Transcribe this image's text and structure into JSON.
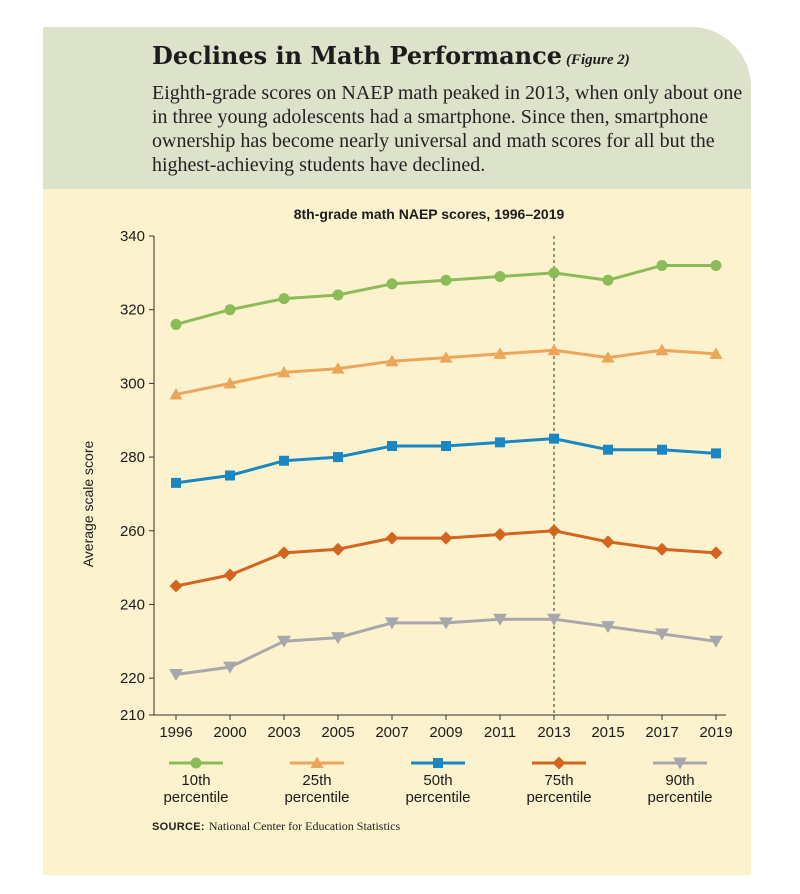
{
  "header": {
    "title": "Declines in Math Performance",
    "figure_label": "(Figure 2)",
    "subtitle": "Eighth-grade scores on NAEP math peaked in 2013, when only about one in three young adolescents had a smartphone. Since then, smartphone ownership has become nearly universal and math scores for all but the highest-achieving students have declined."
  },
  "source": {
    "label": "SOURCE:",
    "text": "National Center for Education Statistics"
  },
  "chart_data": {
    "type": "line",
    "title": "8th-grade math NAEP scores, 1996–2019",
    "xlabel": "",
    "ylabel": "Average scale score",
    "categories": [
      "1996",
      "2000",
      "2003",
      "2005",
      "2007",
      "2009",
      "2011",
      "2013",
      "2015",
      "2017",
      "2019"
    ],
    "ylim": [
      210,
      340
    ],
    "yticks": [
      210,
      220,
      240,
      260,
      280,
      300,
      320,
      340
    ],
    "grid": false,
    "reference_line": "2013",
    "legend_position": "bottom",
    "series": [
      {
        "name": "10th percentile",
        "legend_lines": [
          "10th",
          "percentile"
        ],
        "marker": "circle",
        "color": "#8cbc5a",
        "values": [
          316,
          320,
          323,
          324,
          327,
          328,
          329,
          330,
          328,
          332,
          332
        ]
      },
      {
        "name": "25th percentile",
        "legend_lines": [
          "25th",
          "percentile"
        ],
        "marker": "triangle-up",
        "color": "#eba65b",
        "values": [
          297,
          300,
          303,
          304,
          306,
          307,
          308,
          309,
          307,
          309,
          308
        ]
      },
      {
        "name": "50th percentile",
        "legend_lines": [
          "50th",
          "percentile"
        ],
        "marker": "square",
        "color": "#1a86c2",
        "values": [
          273,
          275,
          279,
          280,
          283,
          283,
          284,
          285,
          282,
          282,
          281
        ]
      },
      {
        "name": "75th percentile",
        "legend_lines": [
          "75th",
          "percentile"
        ],
        "marker": "diamond",
        "color": "#d4651e",
        "values": [
          245,
          248,
          254,
          255,
          258,
          258,
          259,
          260,
          257,
          255,
          254
        ]
      },
      {
        "name": "90th percentile",
        "legend_lines": [
          "90th",
          "percentile"
        ],
        "marker": "triangle-down",
        "color": "#a8a8ac",
        "values": [
          221,
          223,
          230,
          231,
          235,
          235,
          236,
          236,
          234,
          232,
          230
        ]
      }
    ]
  }
}
